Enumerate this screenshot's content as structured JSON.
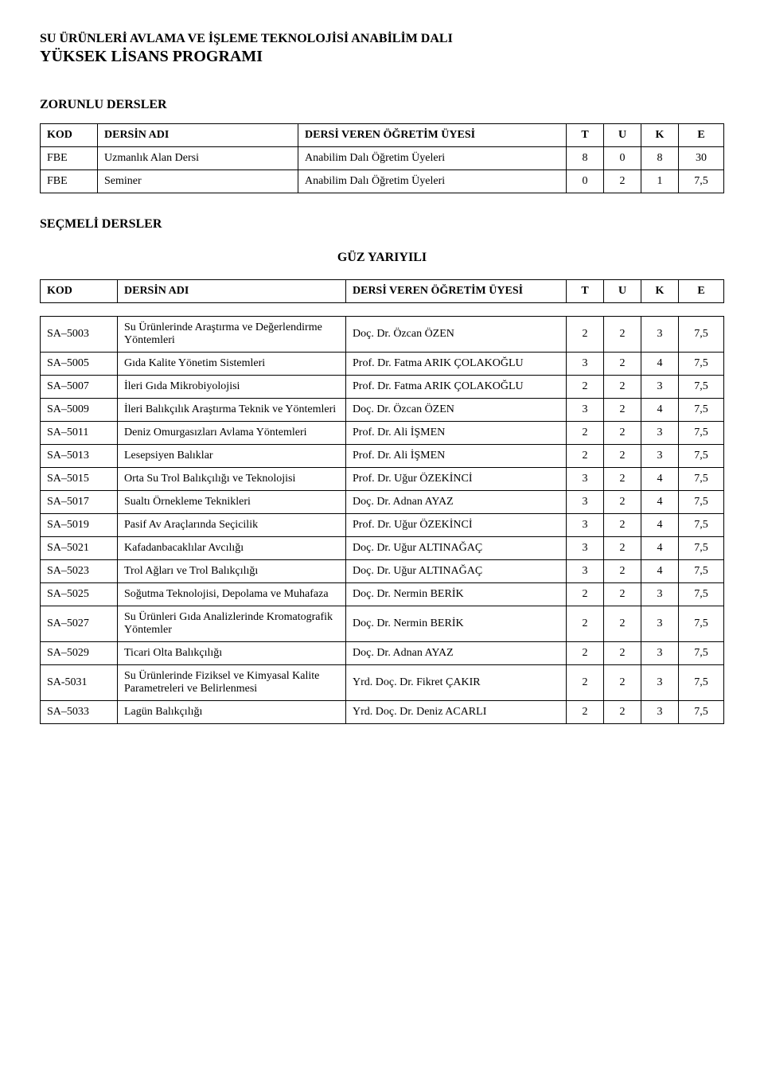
{
  "title_upper": "SU ÜRÜNLERİ AVLAMA VE İŞLEME TEKNOLOJİSİ ANABİLİM DALI",
  "title_lower": "YÜKSEK LİSANS PROGRAMI",
  "section_zorunlu": "ZORUNLU DERSLER",
  "section_secmeli": "SEÇMELİ DERSLER",
  "subheader_guz": "GÜZ YARIYILI",
  "headers": {
    "kod": "KOD",
    "dersin_adi": "DERSİN ADI",
    "dersi_veren": "DERSİ VEREN ÖĞRETİM ÜYESİ",
    "t": "T",
    "u": "U",
    "k": "K",
    "e": "E"
  },
  "zorunlu": [
    {
      "kod": "FBE",
      "ad": "Uzmanlık Alan Dersi",
      "hoca": "Anabilim Dalı Öğretim Üyeleri",
      "t": "8",
      "u": "0",
      "k": "8",
      "e": "30"
    },
    {
      "kod": "FBE",
      "ad": "Seminer",
      "hoca": "Anabilim Dalı Öğretim Üyeleri",
      "t": "0",
      "u": "2",
      "k": "1",
      "e": "7,5"
    }
  ],
  "secmeli": [
    {
      "kod": "SA–5003",
      "ad": "Su Ürünlerinde Araştırma ve Değerlendirme Yöntemleri",
      "hoca": "Doç. Dr. Özcan ÖZEN",
      "t": "2",
      "u": "2",
      "k": "3",
      "e": "7,5"
    },
    {
      "kod": "SA–5005",
      "ad": "Gıda Kalite Yönetim Sistemleri",
      "hoca": "Prof. Dr. Fatma ARIK ÇOLAKOĞLU",
      "t": "3",
      "u": "2",
      "k": "4",
      "e": "7,5"
    },
    {
      "kod": "SA–5007",
      "ad": "İleri Gıda Mikrobiyolojisi",
      "hoca": "Prof. Dr. Fatma ARIK ÇOLAKOĞLU",
      "t": "2",
      "u": "2",
      "k": "3",
      "e": "7,5"
    },
    {
      "kod": "SA–5009",
      "ad": "İleri Balıkçılık Araştırma Teknik ve Yöntemleri",
      "hoca": "Doç. Dr. Özcan ÖZEN",
      "t": "3",
      "u": "2",
      "k": "4",
      "e": "7,5"
    },
    {
      "kod": "SA–5011",
      "ad": "Deniz Omurgasızları Avlama Yöntemleri",
      "hoca": "Prof. Dr. Ali İŞMEN",
      "t": "2",
      "u": "2",
      "k": "3",
      "e": "7,5"
    },
    {
      "kod": "SA–5013",
      "ad": "Lesepsiyen Balıklar",
      "hoca": "Prof. Dr. Ali İŞMEN",
      "t": "2",
      "u": "2",
      "k": "3",
      "e": "7,5"
    },
    {
      "kod": "SA–5015",
      "ad": "Orta Su Trol Balıkçılığı ve Teknolojisi",
      "hoca": "Prof. Dr. Uğur ÖZEKİNCİ",
      "t": "3",
      "u": "2",
      "k": "4",
      "e": "7,5"
    },
    {
      "kod": "SA–5017",
      "ad": "Sualtı Örnekleme Teknikleri",
      "hoca": "Doç. Dr. Adnan AYAZ",
      "t": "3",
      "u": "2",
      "k": "4",
      "e": "7,5"
    },
    {
      "kod": "SA–5019",
      "ad": "Pasif Av Araçlarında Seçicilik",
      "hoca": "Prof. Dr. Uğur ÖZEKİNCİ",
      "t": "3",
      "u": "2",
      "k": "4",
      "e": "7,5"
    },
    {
      "kod": "SA–5021",
      "ad": "Kafadanbacaklılar Avcılığı",
      "hoca": "Doç. Dr. Uğur ALTINAĞAÇ",
      "t": "3",
      "u": "2",
      "k": "4",
      "e": "7,5"
    },
    {
      "kod": "SA–5023",
      "ad": "Trol Ağları ve Trol Balıkçılığı",
      "hoca": "Doç. Dr. Uğur ALTINAĞAÇ",
      "t": "3",
      "u": "2",
      "k": "4",
      "e": "7,5"
    },
    {
      "kod": "SA–5025",
      "ad": "Soğutma Teknolojisi, Depolama ve Muhafaza",
      "hoca": "Doç. Dr. Nermin BERİK",
      "t": "2",
      "u": "2",
      "k": "3",
      "e": "7,5"
    },
    {
      "kod": "SA–5027",
      "ad": "Su Ürünleri Gıda Analizlerinde Kromatografik Yöntemler",
      "hoca": "Doç. Dr. Nermin BERİK",
      "t": "2",
      "u": "2",
      "k": "3",
      "e": "7,5"
    },
    {
      "kod": "SA–5029",
      "ad": "Ticari Olta Balıkçılığı",
      "hoca": "Doç. Dr. Adnan AYAZ",
      "t": "2",
      "u": "2",
      "k": "3",
      "e": "7,5"
    },
    {
      "kod": "SA-5031",
      "ad": "Su Ürünlerinde Fiziksel ve Kimyasal Kalite Parametreleri ve Belirlenmesi",
      "hoca": "Yrd. Doç. Dr. Fikret ÇAKIR",
      "t": "2",
      "u": "2",
      "k": "3",
      "e": "7,5"
    },
    {
      "kod": "SA–5033",
      "ad": "Lagün Balıkçılığı",
      "hoca": "Yrd. Doç. Dr. Deniz ACARLI",
      "t": "2",
      "u": "2",
      "k": "3",
      "e": "7,5"
    }
  ]
}
